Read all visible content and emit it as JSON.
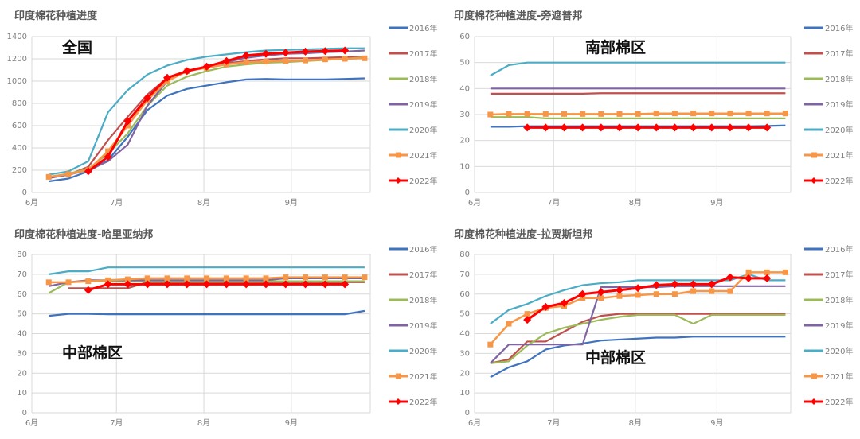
{
  "chart_data": [
    {
      "type": "line",
      "title": "印度棉花种植进度",
      "annotation": "全国",
      "ylim": [
        0,
        1400
      ],
      "yticks": [
        0,
        200,
        400,
        600,
        800,
        1000,
        1200,
        1400
      ],
      "xticks": [
        {
          "date": "06-01",
          "label": "6月"
        },
        {
          "date": "07-01",
          "label": "7月"
        },
        {
          "date": "08-01",
          "label": "8月"
        },
        {
          "date": "09-01",
          "label": "9月"
        }
      ],
      "grid": true,
      "legend": "right",
      "x": [
        "06-07",
        "06-14",
        "06-21",
        "06-28",
        "07-05",
        "07-12",
        "07-19",
        "07-26",
        "08-02",
        "08-09",
        "08-16",
        "08-23",
        "08-30",
        "09-06",
        "09-13",
        "09-20",
        "09-27"
      ],
      "series": [
        {
          "name": "2016年",
          "color": "#3f73bd",
          "values": [
            100,
            125,
            190,
            290,
            500,
            740,
            870,
            930,
            960,
            990,
            1015,
            1020,
            1015,
            1015,
            1015,
            1020,
            1025
          ]
        },
        {
          "name": "2017年",
          "color": "#c0504d",
          "values": [
            130,
            160,
            230,
            470,
            680,
            880,
            1030,
            1090,
            1130,
            1160,
            1180,
            1195,
            1205,
            1205,
            1210,
            1215,
            1220
          ]
        },
        {
          "name": "2018年",
          "color": "#9bbb59",
          "values": [
            140,
            170,
            210,
            350,
            530,
            780,
            960,
            1040,
            1090,
            1130,
            1150,
            1165,
            1170,
            1180,
            1190,
            1200,
            1215
          ]
        },
        {
          "name": "2019年",
          "color": "#8064a2",
          "values": [
            130,
            160,
            200,
            280,
            430,
            780,
            1000,
            1090,
            1130,
            1170,
            1210,
            1230,
            1245,
            1250,
            1260,
            1265,
            1275
          ]
        },
        {
          "name": "2020年",
          "color": "#4bacc6",
          "values": [
            160,
            190,
            280,
            720,
            920,
            1060,
            1140,
            1190,
            1220,
            1240,
            1260,
            1275,
            1280,
            1285,
            1290,
            1295,
            1295
          ]
        },
        {
          "name": "2021年",
          "color": "#f79646",
          "marker": "square",
          "values": [
            140,
            165,
            200,
            370,
            600,
            830,
            1000,
            1090,
            1120,
            1150,
            1170,
            1175,
            1180,
            1185,
            1195,
            1200,
            1205
          ]
        },
        {
          "name": "2022年",
          "color": "#ff0000",
          "marker": "diamond",
          "values": [
            null,
            null,
            190,
            320,
            640,
            850,
            1030,
            1090,
            1130,
            1180,
            1230,
            1245,
            1255,
            1265,
            1270,
            1275,
            null
          ]
        }
      ]
    },
    {
      "type": "line",
      "title": "印度棉花种植进度-旁遮普邦",
      "annotation": "南部棉区",
      "ylim": [
        0,
        60
      ],
      "yticks": [
        0,
        10,
        20,
        30,
        40,
        50,
        60
      ],
      "xticks": [
        {
          "date": "06-01",
          "label": "6月"
        },
        {
          "date": "07-01",
          "label": "7月"
        },
        {
          "date": "08-01",
          "label": "8月"
        },
        {
          "date": "09-01",
          "label": "9月"
        }
      ],
      "grid": true,
      "legend": "right",
      "x": [
        "06-07",
        "06-14",
        "06-21",
        "06-28",
        "07-05",
        "07-12",
        "07-19",
        "07-26",
        "08-02",
        "08-09",
        "08-16",
        "08-23",
        "08-30",
        "09-06",
        "09-13",
        "09-20",
        "09-27"
      ],
      "series": [
        {
          "name": "2016年",
          "color": "#3f73bd",
          "values": [
            25.3,
            25.3,
            25.5,
            25.5,
            25.5,
            25.5,
            25.5,
            25.5,
            25.5,
            25.5,
            25.5,
            25.5,
            25.5,
            25.5,
            25.5,
            25.6,
            25.8
          ]
        },
        {
          "name": "2017年",
          "color": "#c0504d",
          "values": [
            38,
            38,
            38,
            38,
            38,
            38,
            38.2,
            38.2,
            38.2,
            38.2,
            38.2,
            38.2,
            38.2,
            38.2,
            38.2,
            38.2,
            38.2
          ]
        },
        {
          "name": "2018年",
          "color": "#9bbb59",
          "values": [
            29,
            29,
            29,
            28.5,
            28.5,
            28.5,
            28.5,
            28.5,
            28.5,
            28.5,
            28.5,
            28.5,
            28.5,
            28.5,
            28.5,
            28.5,
            28.5
          ]
        },
        {
          "name": "2019年",
          "color": "#8064a2",
          "values": [
            40,
            40,
            40,
            40,
            40,
            40,
            40,
            40,
            40,
            40,
            40,
            40,
            40,
            40,
            40,
            40,
            40
          ]
        },
        {
          "name": "2020年",
          "color": "#4bacc6",
          "values": [
            45,
            49,
            50,
            50,
            50,
            50,
            50,
            50,
            50,
            50,
            50,
            50,
            50,
            50,
            50,
            50,
            50
          ]
        },
        {
          "name": "2021年",
          "color": "#f79646",
          "marker": "square",
          "values": [
            30,
            30.2,
            30.2,
            30.2,
            30.2,
            30.2,
            30.2,
            30.2,
            30.2,
            30.4,
            30.4,
            30.4,
            30.4,
            30.4,
            30.4,
            30.4,
            30.4
          ]
        },
        {
          "name": "2022年",
          "color": "#ff0000",
          "marker": "diamond",
          "values": [
            null,
            null,
            25,
            25,
            25,
            25,
            25,
            25,
            25,
            25,
            25,
            25,
            25,
            25,
            25,
            25,
            null
          ]
        }
      ]
    },
    {
      "type": "line",
      "title": "印度棉花种植进度-哈里亚纳邦",
      "annotation": "中部棉区",
      "ylim": [
        0,
        80
      ],
      "yticks": [
        0,
        10,
        20,
        30,
        40,
        50,
        60,
        70,
        80
      ],
      "xticks": [
        {
          "date": "06-01",
          "label": "6月"
        },
        {
          "date": "07-01",
          "label": "7月"
        },
        {
          "date": "08-01",
          "label": "8月"
        },
        {
          "date": "09-01",
          "label": "9月"
        }
      ],
      "grid": true,
      "legend": "right",
      "x": [
        "06-07",
        "06-14",
        "06-21",
        "06-28",
        "07-05",
        "07-12",
        "07-19",
        "07-26",
        "08-02",
        "08-09",
        "08-16",
        "08-23",
        "08-30",
        "09-06",
        "09-13",
        "09-20",
        "09-27"
      ],
      "series": [
        {
          "name": "2016年",
          "color": "#3f73bd",
          "values": [
            49,
            50,
            50,
            49.8,
            49.8,
            49.8,
            49.8,
            49.8,
            49.8,
            49.8,
            49.8,
            49.8,
            49.8,
            49.8,
            49.8,
            49.8,
            51.5
          ]
        },
        {
          "name": "2017年",
          "color": "#c0504d",
          "values": [
            null,
            63,
            63,
            63,
            63,
            66,
            66,
            66,
            66,
            66,
            66,
            66,
            66,
            66,
            66,
            66,
            66
          ]
        },
        {
          "name": "2018年",
          "color": "#9bbb59",
          "values": [
            60.5,
            66,
            66.5,
            66.5,
            66.5,
            66.5,
            66.5,
            66.5,
            66.5,
            66.5,
            66.5,
            66.5,
            66.5,
            66.5,
            66.5,
            66.5,
            66.5
          ]
        },
        {
          "name": "2019年",
          "color": "#8064a2",
          "values": [
            64,
            66,
            67,
            67,
            67,
            67,
            67,
            67,
            67,
            67,
            67,
            67,
            68,
            68,
            68,
            68,
            68
          ]
        },
        {
          "name": "2020年",
          "color": "#4bacc6",
          "values": [
            70,
            71.5,
            71.5,
            73.5,
            73.5,
            73.5,
            73.5,
            73.5,
            73.5,
            73.5,
            73.5,
            73.5,
            73.5,
            73.5,
            73.5,
            73.5,
            73.5
          ]
        },
        {
          "name": "2021年",
          "color": "#f79646",
          "marker": "square",
          "values": [
            66,
            66,
            66.5,
            67,
            67.5,
            68,
            68,
            68,
            68,
            68,
            68,
            68,
            68.5,
            68.5,
            68.5,
            68.5,
            68.5
          ]
        },
        {
          "name": "2022年",
          "color": "#ff0000",
          "marker": "diamond",
          "values": [
            null,
            null,
            62,
            65,
            65,
            65,
            65,
            65,
            65,
            65,
            65,
            65,
            65,
            65,
            65,
            65,
            null
          ]
        }
      ]
    },
    {
      "type": "line",
      "title": "印度棉花种植进度-拉贾斯坦邦",
      "annotation": "中部棉区",
      "ylim": [
        0,
        80
      ],
      "yticks": [
        0,
        10,
        20,
        30,
        40,
        50,
        60,
        70,
        80
      ],
      "xticks": [
        {
          "date": "06-01",
          "label": "6月"
        },
        {
          "date": "07-01",
          "label": "7月"
        },
        {
          "date": "08-01",
          "label": "8月"
        },
        {
          "date": "09-01",
          "label": "9月"
        }
      ],
      "grid": true,
      "legend": "right",
      "x": [
        "06-07",
        "06-14",
        "06-21",
        "06-28",
        "07-05",
        "07-12",
        "07-19",
        "07-26",
        "08-02",
        "08-09",
        "08-16",
        "08-23",
        "08-30",
        "09-06",
        "09-13",
        "09-20",
        "09-27"
      ],
      "series": [
        {
          "name": "2016年",
          "color": "#3f73bd",
          "values": [
            18,
            23,
            26,
            32,
            34,
            35,
            36.5,
            37,
            37.5,
            38,
            38,
            38.5,
            38.5,
            38.5,
            38.5,
            38.5,
            38.5
          ]
        },
        {
          "name": "2017年",
          "color": "#c0504d",
          "values": [
            25,
            27,
            36,
            36,
            41,
            46,
            49,
            50,
            50,
            50,
            50,
            50,
            50,
            50,
            50,
            50,
            50
          ]
        },
        {
          "name": "2018年",
          "color": "#9bbb59",
          "values": [
            25,
            26,
            34,
            40,
            43,
            45,
            47,
            48.5,
            49.5,
            49.5,
            49.5,
            45,
            49.5,
            49.5,
            49.5,
            49.5,
            49.5
          ]
        },
        {
          "name": "2019年",
          "color": "#8064a2",
          "values": [
            25,
            34.5,
            34.5,
            34.5,
            34.5,
            34.5,
            63.5,
            63.5,
            63.5,
            63.5,
            64,
            64,
            64,
            64,
            64,
            64,
            64
          ]
        },
        {
          "name": "2020年",
          "color": "#4bacc6",
          "values": [
            45,
            52,
            55,
            59,
            62,
            64.5,
            65.5,
            66,
            67,
            67,
            67,
            67,
            67,
            67,
            70,
            67,
            67
          ]
        },
        {
          "name": "2021年",
          "color": "#f79646",
          "marker": "square",
          "values": [
            34.5,
            45,
            50,
            53,
            54,
            58,
            58,
            59,
            59.5,
            60,
            60,
            61.5,
            61.5,
            61.5,
            71,
            71,
            71
          ]
        },
        {
          "name": "2022年",
          "color": "#ff0000",
          "marker": "diamond",
          "values": [
            null,
            null,
            47,
            53.5,
            55.5,
            60,
            61,
            62,
            63,
            64.5,
            65,
            65,
            65,
            68.5,
            68,
            68,
            null
          ]
        }
      ]
    }
  ]
}
